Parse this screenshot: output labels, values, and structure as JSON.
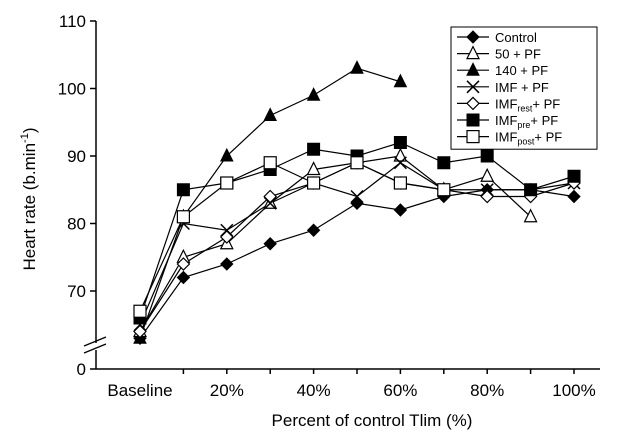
{
  "chart_data": {
    "type": "line",
    "xlabel": "Percent of control Tlim (%)",
    "ylabel_main": "Heart rate (b.min",
    "ylabel_sup": "-1",
    "ylabel_close": ")",
    "y_axis": {
      "ticks": [
        0,
        70,
        80,
        90,
        100,
        110
      ],
      "break": "between 0 and 70",
      "visible_range": [
        65,
        110
      ]
    },
    "x_ticks": [
      {
        "x": 0,
        "label": "Baseline"
      },
      {
        "x": 20,
        "label": "20%"
      },
      {
        "x": 40,
        "label": "40%"
      },
      {
        "x": 60,
        "label": "60%"
      },
      {
        "x": 80,
        "label": "80%"
      },
      {
        "x": 100,
        "label": "100%"
      }
    ],
    "legend_position": "top-right",
    "series": [
      {
        "name": "Control",
        "marker": "diamond-filled",
        "points": [
          [
            0,
            63
          ],
          [
            10,
            72
          ],
          [
            20,
            74
          ],
          [
            30,
            77
          ],
          [
            40,
            79
          ],
          [
            50,
            83
          ],
          [
            60,
            82
          ],
          [
            70,
            84
          ],
          [
            80,
            85
          ],
          [
            90,
            85
          ],
          [
            100,
            84
          ]
        ]
      },
      {
        "name": "50 + PF",
        "marker": "triangle-open",
        "points": [
          [
            0,
            64
          ],
          [
            10,
            75
          ],
          [
            20,
            77
          ],
          [
            30,
            83
          ],
          [
            40,
            88
          ],
          [
            50,
            89
          ],
          [
            60,
            90
          ],
          [
            70,
            85
          ],
          [
            80,
            87
          ],
          [
            90,
            81
          ]
        ]
      },
      {
        "name": "140 + PF",
        "marker": "triangle-filled",
        "points": [
          [
            0,
            63
          ],
          [
            10,
            81
          ],
          [
            20,
            90
          ],
          [
            30,
            96
          ],
          [
            40,
            99
          ],
          [
            50,
            103
          ],
          [
            60,
            101
          ]
        ]
      },
      {
        "name": "IMF + PF",
        "marker": "x",
        "points": [
          [
            0,
            65
          ],
          [
            10,
            80
          ],
          [
            20,
            79
          ],
          [
            30,
            83
          ],
          [
            40,
            86
          ],
          [
            50,
            84
          ],
          [
            60,
            89
          ],
          [
            70,
            85
          ],
          [
            80,
            85
          ],
          [
            90,
            85
          ],
          [
            100,
            86
          ]
        ]
      },
      {
        "name": "IMFrest+ PF",
        "legend_main": "IMF",
        "legend_sub": "rest",
        "legend_rest": "+ PF",
        "marker": "diamond-open",
        "points": [
          [
            0,
            64
          ],
          [
            10,
            74
          ],
          [
            20,
            78
          ],
          [
            30,
            84
          ],
          [
            40,
            86
          ],
          [
            50,
            89
          ],
          [
            60,
            86
          ],
          [
            70,
            85
          ],
          [
            80,
            84
          ],
          [
            90,
            84
          ],
          [
            100,
            86
          ]
        ]
      },
      {
        "name": "IMFpre+ PF",
        "legend_main": "IMF",
        "legend_sub": "pre",
        "legend_rest": "+ PF",
        "marker": "square-filled",
        "points": [
          [
            0,
            66
          ],
          [
            10,
            85
          ],
          [
            20,
            86
          ],
          [
            30,
            88
          ],
          [
            40,
            91
          ],
          [
            50,
            90
          ],
          [
            60,
            92
          ],
          [
            70,
            89
          ],
          [
            80,
            90
          ],
          [
            90,
            85
          ],
          [
            100,
            87
          ]
        ]
      },
      {
        "name": "IMFpost+ PF",
        "legend_main": "IMF",
        "legend_sub": "post",
        "legend_rest": "+ PF",
        "marker": "square-open",
        "points": [
          [
            0,
            67
          ],
          [
            10,
            81
          ],
          [
            20,
            86
          ],
          [
            30,
            89
          ],
          [
            40,
            86
          ],
          [
            50,
            89
          ],
          [
            60,
            86
          ],
          [
            70,
            85
          ]
        ]
      }
    ]
  }
}
